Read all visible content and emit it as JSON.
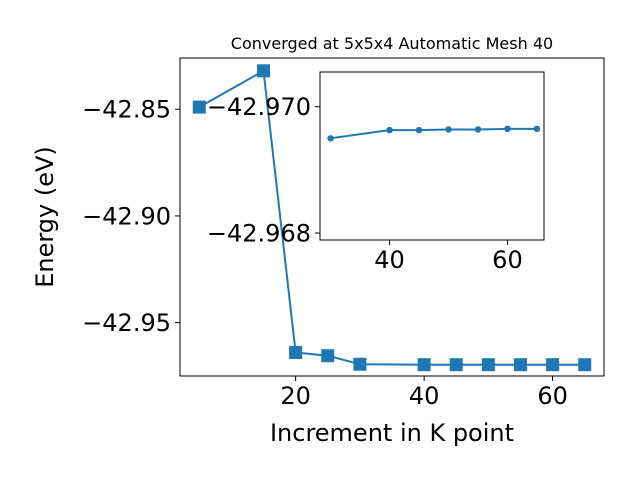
{
  "chart_data": [
    {
      "type": "line",
      "title": "Converged at 5x5x4 Automatic Mesh 40",
      "xlabel": "Increment in K point",
      "ylabel": "Energy (eV)",
      "xlim": [
        2,
        68
      ],
      "ylim": [
        -42.975,
        -42.826
      ],
      "xticks": [
        20,
        40,
        60
      ],
      "xtick_labels": [
        "20",
        "40",
        "60"
      ],
      "yticks": [
        -42.85,
        -42.9,
        -42.95
      ],
      "ytick_labels": [
        "−42.85",
        "−42.90",
        "−42.95"
      ],
      "grid": false,
      "marker": "square",
      "color": "#1f77b4",
      "series": [
        {
          "x": [
            5,
            15,
            20,
            25,
            30,
            40,
            45,
            50,
            55,
            60,
            65
          ],
          "y": [
            -42.849,
            -42.832,
            -42.964,
            -42.9655,
            -42.9695,
            -42.9697,
            -42.9697,
            -42.9697,
            -42.9697,
            -42.9697,
            -42.9697
          ]
        }
      ]
    },
    {
      "type": "line",
      "title": "",
      "xlabel": "",
      "ylabel": "",
      "xlim": [
        28.2,
        66.2
      ],
      "ylim": [
        -42.96789,
        -42.97055
      ],
      "xticks": [
        40,
        60
      ],
      "xtick_labels": [
        "40",
        "60"
      ],
      "yticks": [
        -42.97,
        -42.968
      ],
      "ytick_labels": [
        "−42.970",
        "−42.968"
      ],
      "grid": false,
      "marker": "circle",
      "color": "#1f77b4",
      "series": [
        {
          "x": [
            30,
            40,
            45,
            50,
            55,
            60,
            65
          ],
          "y": [
            -42.9695,
            -42.96963,
            -42.96963,
            -42.96964,
            -42.96964,
            -42.96965,
            -42.96965
          ]
        }
      ]
    }
  ]
}
